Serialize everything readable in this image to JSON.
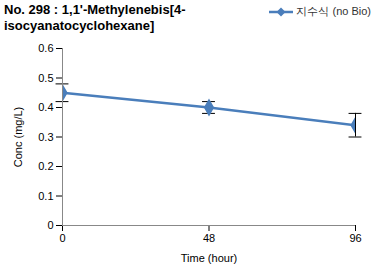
{
  "chart_data": {
    "type": "line",
    "title": "No. 298 : 1,1'-Methylenebis[4-isocyanatocyclohexane]",
    "x_label": "Time (hour)",
    "y_label": "Conc (mg/L)",
    "x": [
      0,
      48,
      96
    ],
    "series": [
      {
        "name": "지수식 (no Bio)",
        "color": "#4a7ebb",
        "marker": "diamond",
        "values": [
          0.45,
          0.4,
          0.34
        ],
        "errors": [
          0.03,
          0.02,
          0.04
        ]
      }
    ],
    "xlim": [
      0,
      96
    ],
    "xticks": [
      0,
      48,
      96
    ],
    "ylim": [
      0,
      0.6
    ],
    "yticks": [
      0,
      0.1,
      0.2,
      0.3,
      0.4,
      0.5,
      0.6
    ],
    "grid": false,
    "legend": "top right"
  }
}
